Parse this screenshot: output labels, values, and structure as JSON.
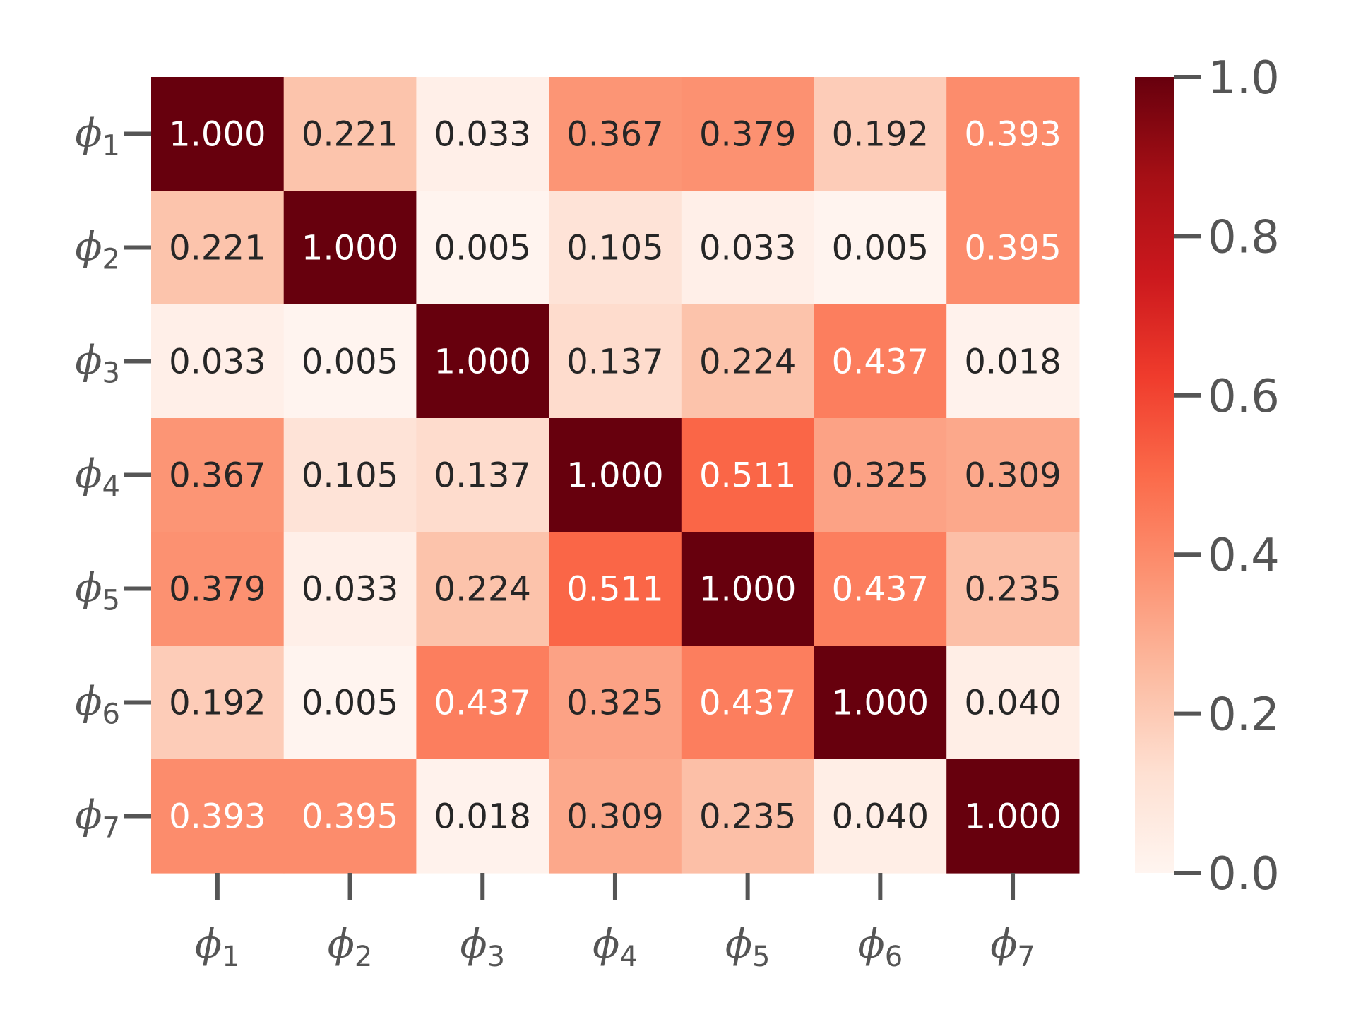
{
  "chart_data": {
    "type": "heatmap",
    "title": "",
    "xlabel": "",
    "ylabel": "",
    "x_categories": [
      {
        "base": "ϕ",
        "sub": "1"
      },
      {
        "base": "ϕ",
        "sub": "2"
      },
      {
        "base": "ϕ",
        "sub": "3"
      },
      {
        "base": "ϕ",
        "sub": "4"
      },
      {
        "base": "ϕ",
        "sub": "5"
      },
      {
        "base": "ϕ",
        "sub": "6"
      },
      {
        "base": "ϕ",
        "sub": "7"
      }
    ],
    "y_categories": [
      {
        "base": "ϕ",
        "sub": "1"
      },
      {
        "base": "ϕ",
        "sub": "2"
      },
      {
        "base": "ϕ",
        "sub": "3"
      },
      {
        "base": "ϕ",
        "sub": "4"
      },
      {
        "base": "ϕ",
        "sub": "5"
      },
      {
        "base": "ϕ",
        "sub": "6"
      },
      {
        "base": "ϕ",
        "sub": "7"
      }
    ],
    "values": [
      [
        1.0,
        0.221,
        0.033,
        0.367,
        0.379,
        0.192,
        0.393
      ],
      [
        0.221,
        1.0,
        0.005,
        0.105,
        0.033,
        0.005,
        0.395
      ],
      [
        0.033,
        0.005,
        1.0,
        0.137,
        0.224,
        0.437,
        0.018
      ],
      [
        0.367,
        0.105,
        0.137,
        1.0,
        0.511,
        0.325,
        0.309
      ],
      [
        0.379,
        0.033,
        0.224,
        0.511,
        1.0,
        0.437,
        0.235
      ],
      [
        0.192,
        0.005,
        0.437,
        0.325,
        0.437,
        1.0,
        0.04
      ],
      [
        0.393,
        0.395,
        0.018,
        0.309,
        0.235,
        0.04,
        1.0
      ]
    ],
    "cell_labels": [
      [
        "1.000",
        "0.221",
        "0.033",
        "0.367",
        "0.379",
        "0.192",
        "0.393"
      ],
      [
        "0.221",
        "1.000",
        "0.005",
        "0.105",
        "0.033",
        "0.005",
        "0.395"
      ],
      [
        "0.033",
        "0.005",
        "1.000",
        "0.137",
        "0.224",
        "0.437",
        "0.018"
      ],
      [
        "0.367",
        "0.105",
        "0.137",
        "1.000",
        "0.511",
        "0.325",
        "0.309"
      ],
      [
        "0.379",
        "0.033",
        "0.224",
        "0.511",
        "1.000",
        "0.437",
        "0.235"
      ],
      [
        "0.192",
        "0.005",
        "0.437",
        "0.325",
        "0.437",
        "1.000",
        "0.040"
      ],
      [
        "0.393",
        "0.395",
        "0.018",
        "0.309",
        "0.235",
        "0.040",
        "1.000"
      ]
    ],
    "colormap": "Reds",
    "color_range": [
      0.0,
      1.0
    ],
    "colorbar": {
      "ticks": [
        0.0,
        0.2,
        0.4,
        0.6,
        0.8,
        1.0
      ],
      "tick_labels": [
        "0.0",
        "0.2",
        "0.4",
        "0.6",
        "0.8",
        "1.0"
      ],
      "placement": "right"
    },
    "colors": {
      "axis": "#555555",
      "label_dark": "#262626",
      "label_light": "#ffffff"
    }
  }
}
